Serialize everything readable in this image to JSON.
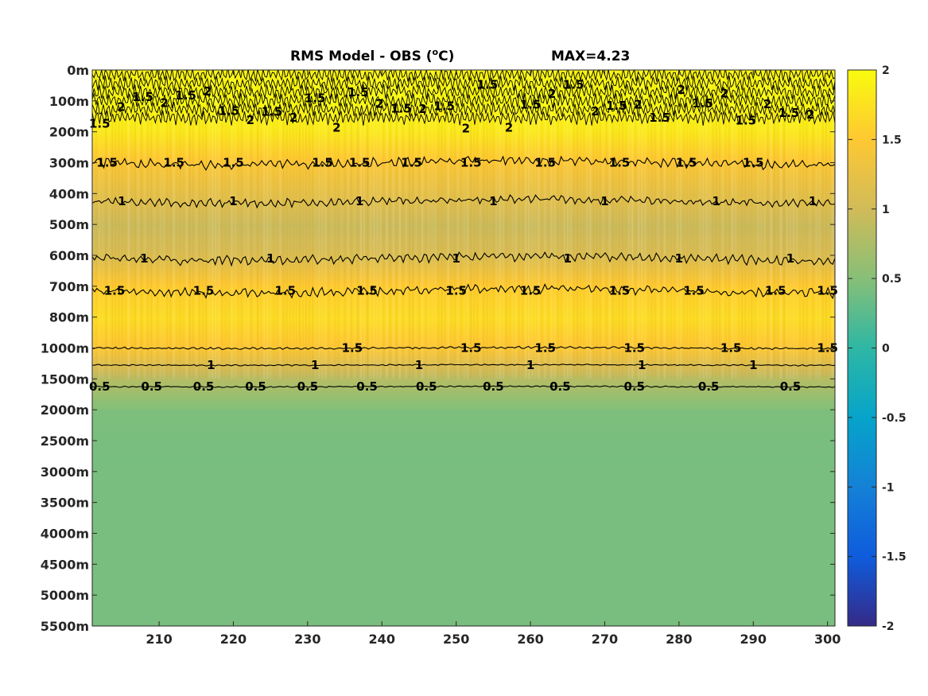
{
  "chart_data": {
    "type": "heatmap",
    "title_main": "RMS Model - OBS (",
    "title_unit_sup": "o",
    "title_unit_tail": "C)",
    "title_max": "MAX=4.23",
    "xlim": [
      201,
      301
    ],
    "x_ticks": [
      210,
      220,
      230,
      240,
      250,
      260,
      270,
      280,
      290,
      300
    ],
    "y_ticks": [
      "0m",
      "100m",
      "200m",
      "300m",
      "400m",
      "500m",
      "600m",
      "700m",
      "800m",
      "1000m",
      "1500m",
      "2000m",
      "2500m",
      "3000m",
      "3500m",
      "4000m",
      "4500m",
      "5000m",
      "5500m"
    ],
    "colorbar": {
      "ticks": [
        "2",
        "1.5",
        "1",
        "0.5",
        "0",
        "-0.5",
        "-1",
        "-1.5",
        "-2"
      ],
      "range": [
        -2,
        2
      ],
      "colormap": "parula"
    },
    "depth_profile": [
      {
        "level": 0,
        "value": 1.95
      },
      {
        "level": 1,
        "value": 2.0
      },
      {
        "level": 2,
        "value": 1.8
      },
      {
        "level": 3,
        "value": 1.45
      },
      {
        "level": 4,
        "value": 1.2
      },
      {
        "level": 5,
        "value": 0.95
      },
      {
        "level": 6,
        "value": 1.1
      },
      {
        "level": 7,
        "value": 1.55
      },
      {
        "level": 8,
        "value": 1.7
      },
      {
        "level": 9,
        "value": 1.45
      },
      {
        "level": 10,
        "value": 0.8
      },
      {
        "level": 11,
        "value": 0.45
      },
      {
        "level": 12,
        "value": 0.42
      },
      {
        "level": 13,
        "value": 0.42
      },
      {
        "level": 14,
        "value": 0.42
      },
      {
        "level": 15,
        "value": 0.42
      },
      {
        "level": 16,
        "value": 0.42
      },
      {
        "level": 17,
        "value": 0.42
      },
      {
        "level": 18,
        "value": 0.42
      }
    ],
    "contours": [
      {
        "label": "1.5",
        "level": 3.0,
        "noise": 0.35,
        "labels_at": [
          203,
          212,
          220,
          232,
          237,
          244,
          252,
          262,
          272,
          281,
          290
        ]
      },
      {
        "label": "1",
        "level": 4.25,
        "noise": 0.3,
        "labels_at": [
          205,
          220,
          237,
          255,
          270,
          285,
          298
        ]
      },
      {
        "label": "1",
        "level": 6.1,
        "noise": 0.35,
        "labels_at": [
          208,
          225,
          250,
          265,
          280,
          295
        ]
      },
      {
        "label": "1.5",
        "level": 7.15,
        "noise": 0.35,
        "labels_at": [
          204,
          216,
          227,
          238,
          250,
          260,
          272,
          282,
          293,
          300
        ]
      },
      {
        "label": "1.5",
        "level": 9.0,
        "noise": 0.08,
        "labels_at": [
          236,
          252,
          262,
          274,
          287,
          300
        ]
      },
      {
        "label": "1",
        "level": 9.55,
        "noise": 0.05,
        "labels_at": [
          217,
          231,
          245,
          260,
          275,
          290
        ]
      },
      {
        "label": "0.5",
        "level": 10.25,
        "noise": 0.05,
        "labels_at": [
          202,
          209,
          216,
          223,
          230,
          238,
          246,
          255,
          264,
          274,
          284,
          295
        ]
      }
    ],
    "surface_contour_labels": [
      "1.5",
      "2"
    ]
  }
}
